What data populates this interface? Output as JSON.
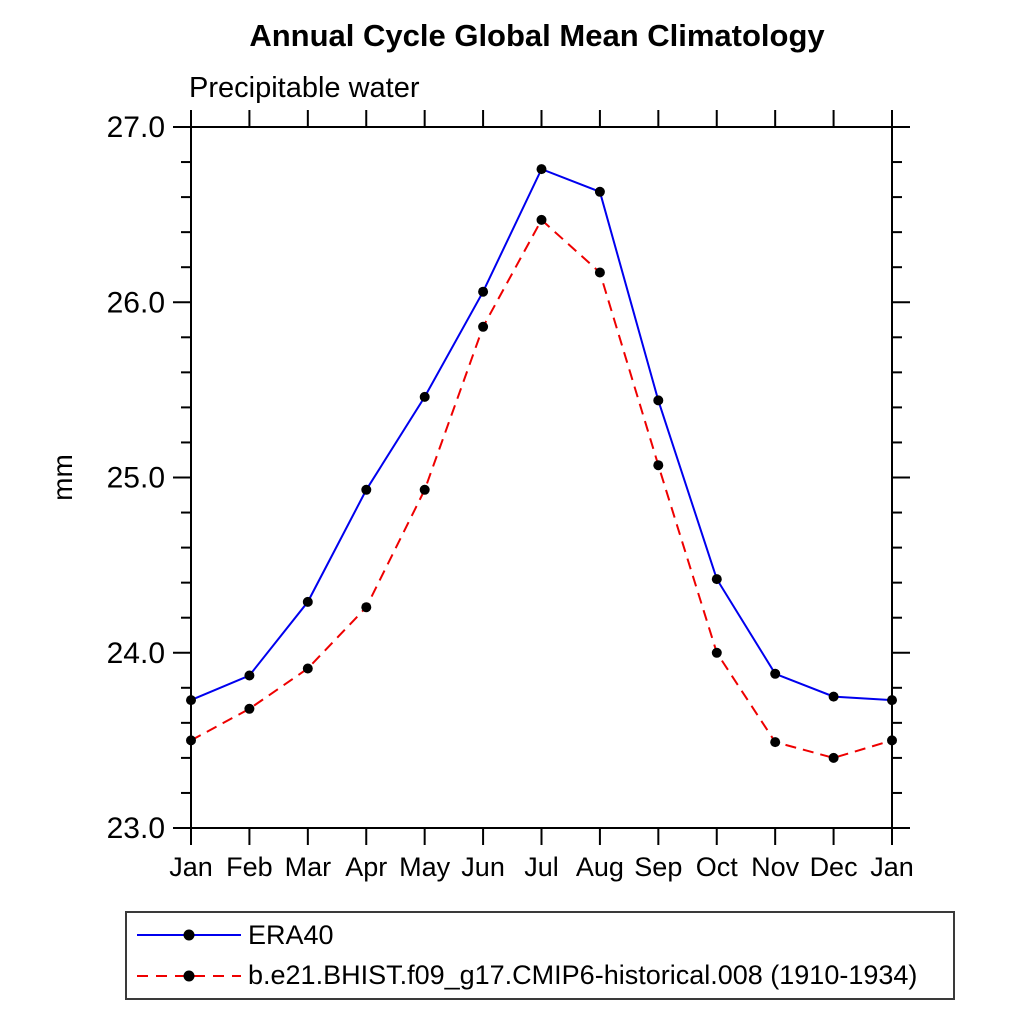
{
  "chart_data": {
    "type": "line",
    "title": "Annual Cycle Global Mean Climatology",
    "subtitle": "Precipitable water",
    "ylabel": "mm",
    "xlabel": "",
    "categories": [
      "Jan",
      "Feb",
      "Mar",
      "Apr",
      "May",
      "Jun",
      "Jul",
      "Aug",
      "Sep",
      "Oct",
      "Nov",
      "Dec",
      "Jan"
    ],
    "ylim": [
      23.0,
      27.0
    ],
    "ytick_labels": [
      "23.0",
      "24.0",
      "25.0",
      "26.0",
      "27.0"
    ],
    "ytick_values": [
      23.0,
      24.0,
      25.0,
      26.0,
      27.0
    ],
    "minor_tick_interval": 0.2,
    "grid": false,
    "legend_position": "bottom",
    "axis_color": "#000000",
    "marker_color": "#000000",
    "series": [
      {
        "name": "ERA40",
        "color": "#0000ee",
        "line_style": "solid",
        "marker": "filled-circle",
        "values": [
          23.73,
          23.87,
          24.29,
          24.93,
          25.46,
          26.06,
          26.76,
          26.63,
          25.44,
          24.42,
          23.88,
          23.75,
          23.73
        ]
      },
      {
        "name": "b.e21.BHIST.f09_g17.CMIP6-historical.008 (1910-1934)",
        "color": "#ee0000",
        "line_style": "dashed",
        "marker": "filled-circle",
        "values": [
          23.5,
          23.68,
          23.91,
          24.26,
          24.93,
          25.86,
          26.47,
          26.17,
          25.07,
          24.0,
          23.49,
          23.4,
          23.5
        ]
      }
    ]
  }
}
